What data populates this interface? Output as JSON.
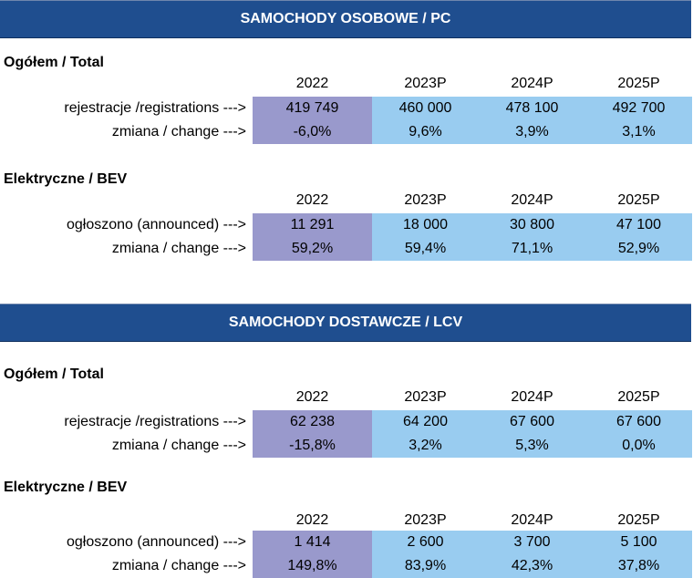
{
  "pc": {
    "banner": "SAMOCHODY OSOBOWE / PC",
    "total": {
      "title": "Ogółem / Total",
      "years": [
        "2022",
        "2023P",
        "2024P",
        "2025P"
      ],
      "row1_label": "rejestracje /registrations --->",
      "row1": [
        "419 749",
        "460 000",
        "478 100",
        "492 700"
      ],
      "row2_label": "zmiana / change --->",
      "row2": [
        "-6,0%",
        "9,6%",
        "3,9%",
        "3,1%"
      ]
    },
    "bev": {
      "title": "Elektryczne / BEV",
      "years": [
        "2022",
        "2023P",
        "2024P",
        "2025P"
      ],
      "row1_label": "ogłoszono (announced) --->",
      "row1": [
        "11 291",
        "18 000",
        "30 800",
        "47 100"
      ],
      "row2_label": "zmiana / change --->",
      "row2": [
        "59,2%",
        "59,4%",
        "71,1%",
        "52,9%"
      ]
    }
  },
  "lcv": {
    "banner": "SAMOCHODY DOSTAWCZE / LCV",
    "total": {
      "title": "Ogółem / Total",
      "years": [
        "2022",
        "2023P",
        "2024P",
        "2025P"
      ],
      "row1_label": "rejestracje /registrations --->",
      "row1": [
        "62 238",
        "64 200",
        "67 600",
        "67 600"
      ],
      "row2_label": "zmiana / change --->",
      "row2": [
        "-15,8%",
        "3,2%",
        "5,3%",
        "0,0%"
      ]
    },
    "bev": {
      "title": "Elektryczne / BEV",
      "years": [
        "2022",
        "2023P",
        "2024P",
        "2025P"
      ],
      "row1_label": "ogłoszono (announced) --->",
      "row1": [
        "1 414",
        "2 600",
        "3 700",
        "5 100"
      ],
      "row2_label": "zmiana / change --->",
      "row2": [
        "149,8%",
        "83,9%",
        "42,3%",
        "37,8%"
      ]
    }
  }
}
